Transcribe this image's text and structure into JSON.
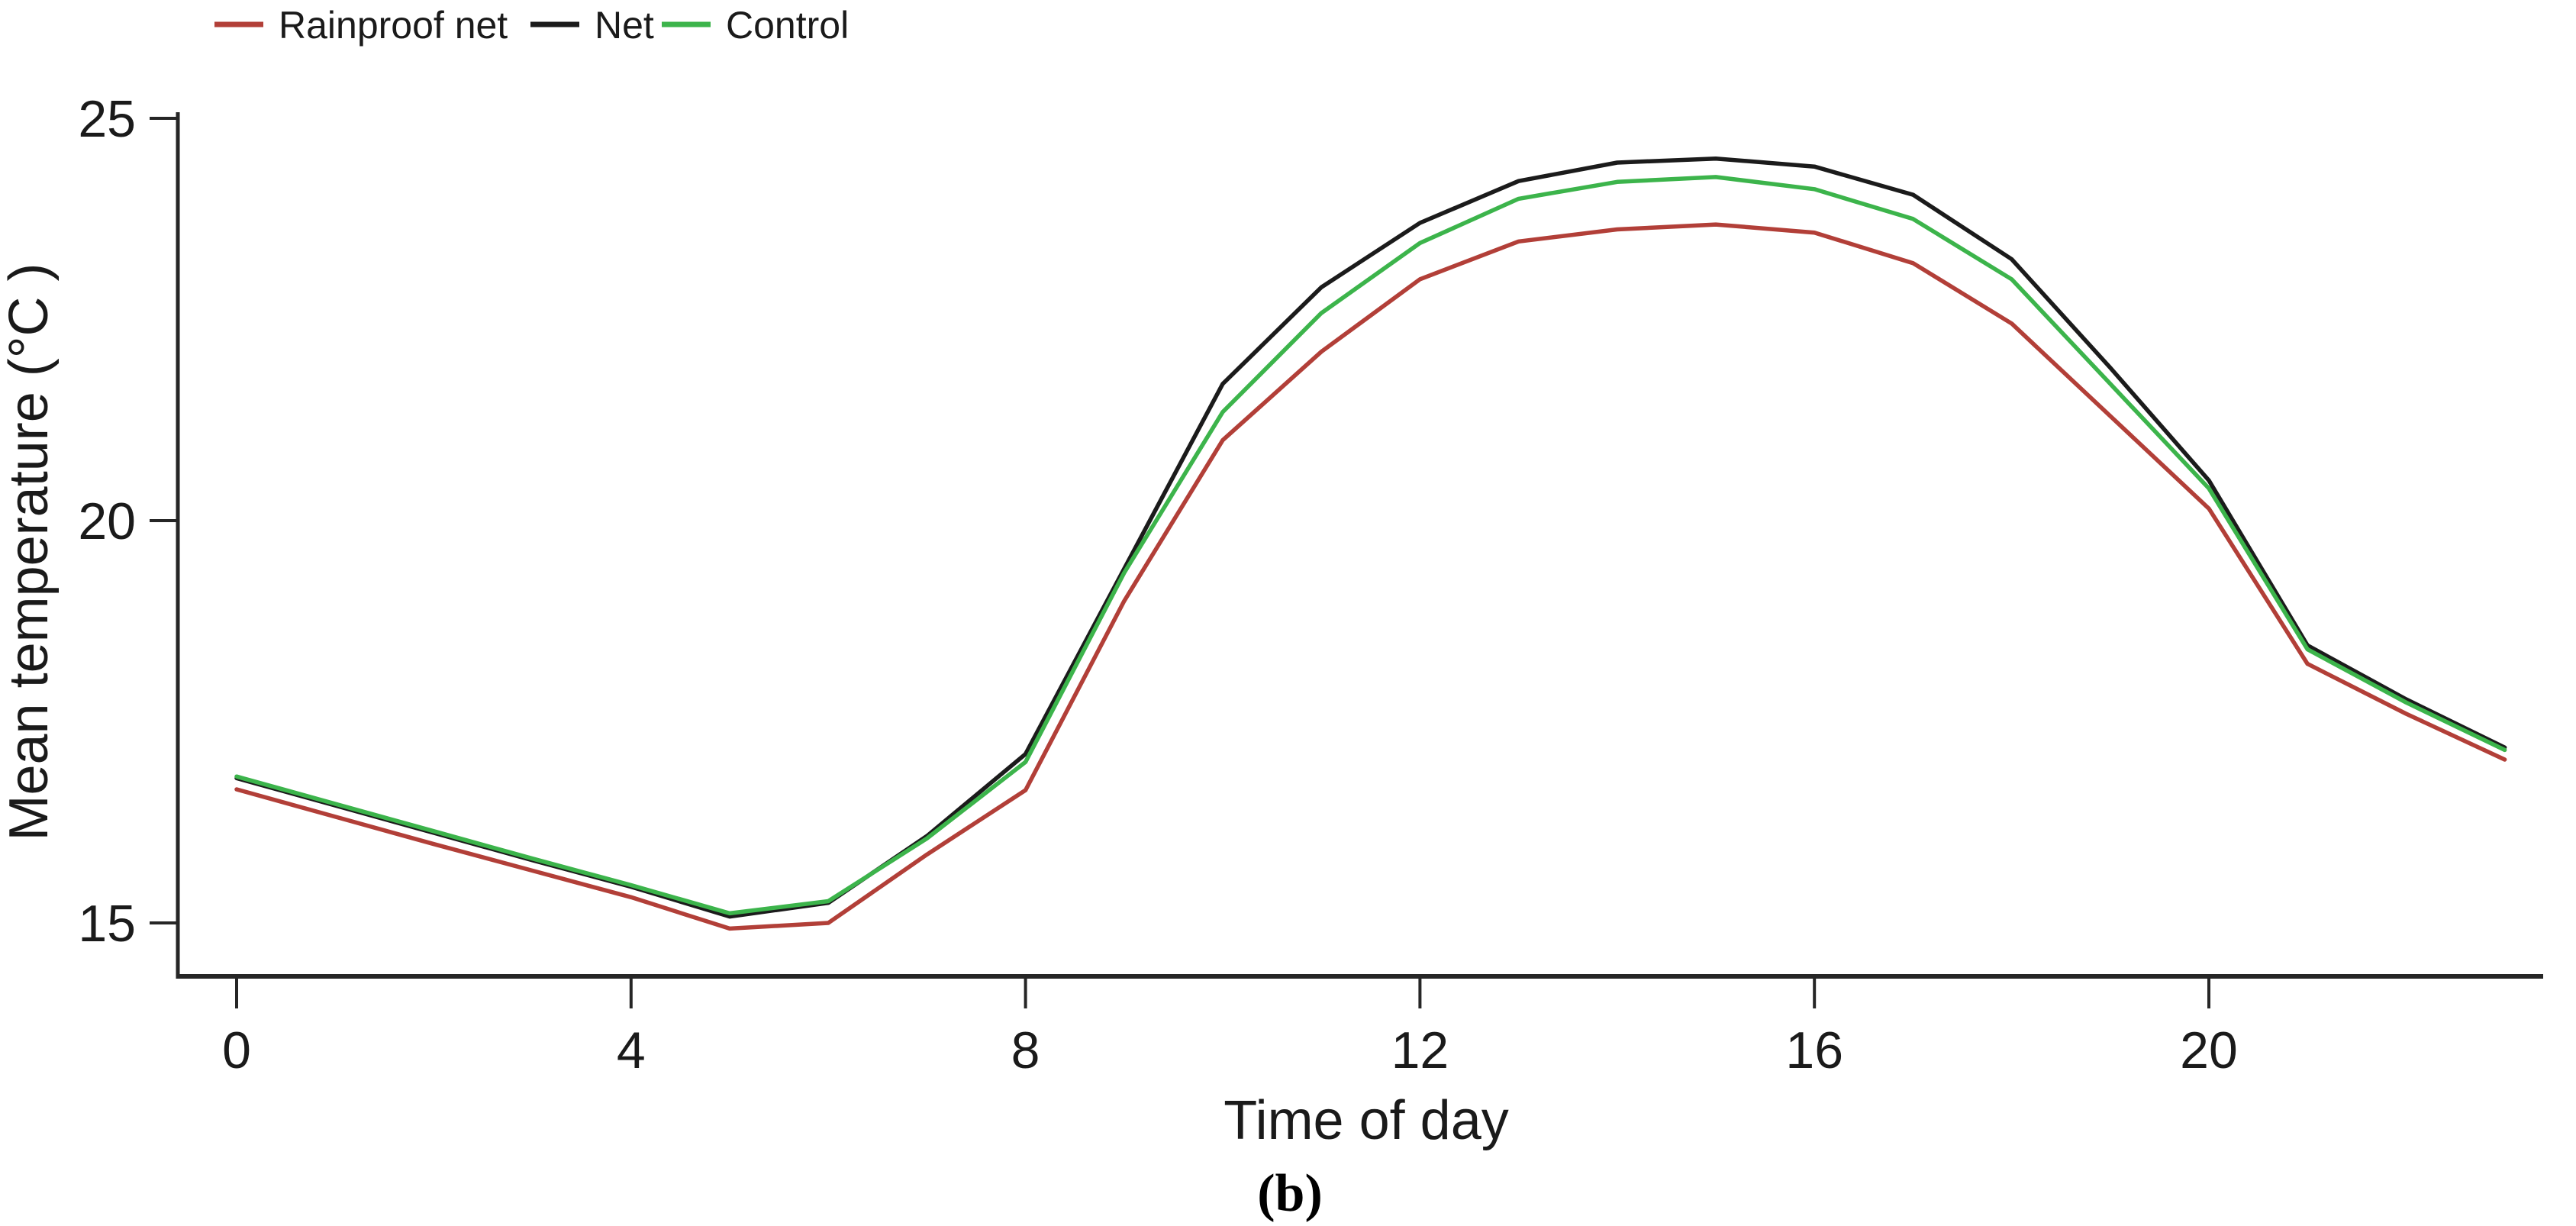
{
  "chart_data": {
    "type": "line",
    "title": "",
    "xlabel": "Time of day",
    "ylabel": "Mean temperature (°C )",
    "caption": "(b)",
    "x": [
      0,
      1,
      2,
      3,
      4,
      5,
      6,
      7,
      8,
      9,
      10,
      11,
      12,
      13,
      14,
      15,
      16,
      17,
      18,
      19,
      20,
      21,
      22,
      23
    ],
    "series": [
      {
        "name": "Rainproof net",
        "color": "#b23f38",
        "values": [
          16.66,
          16.32,
          15.98,
          15.65,
          15.32,
          14.93,
          15.0,
          15.85,
          16.65,
          19.0,
          21.0,
          22.1,
          23.0,
          23.47,
          23.62,
          23.68,
          23.58,
          23.2,
          22.45,
          21.3,
          20.15,
          18.22,
          17.6,
          17.03
        ]
      },
      {
        "name": "Net",
        "color": "#1b1b1b",
        "values": [
          16.8,
          16.46,
          16.12,
          15.78,
          15.45,
          15.08,
          15.25,
          16.08,
          17.1,
          19.4,
          21.7,
          22.9,
          23.7,
          24.22,
          24.45,
          24.5,
          24.4,
          24.05,
          23.25,
          21.9,
          20.5,
          18.45,
          17.78,
          17.18
        ]
      },
      {
        "name": "Control",
        "color": "#3cb44b",
        "values": [
          16.82,
          16.48,
          16.14,
          15.8,
          15.47,
          15.12,
          15.27,
          16.05,
          17.0,
          19.35,
          21.35,
          22.58,
          23.45,
          24.0,
          24.21,
          24.27,
          24.12,
          23.75,
          23.0,
          21.7,
          20.4,
          18.4,
          17.74,
          17.15
        ]
      }
    ],
    "x_ticks": [
      0,
      4,
      8,
      12,
      16,
      20
    ],
    "y_ticks": [
      15,
      20,
      25
    ],
    "xlim": [
      0,
      23
    ],
    "ylim": [
      14.5,
      25.1
    ],
    "grid": false,
    "legend_position": "top-left"
  },
  "colors": {
    "axis": "#262626",
    "background": "#ffffff"
  }
}
